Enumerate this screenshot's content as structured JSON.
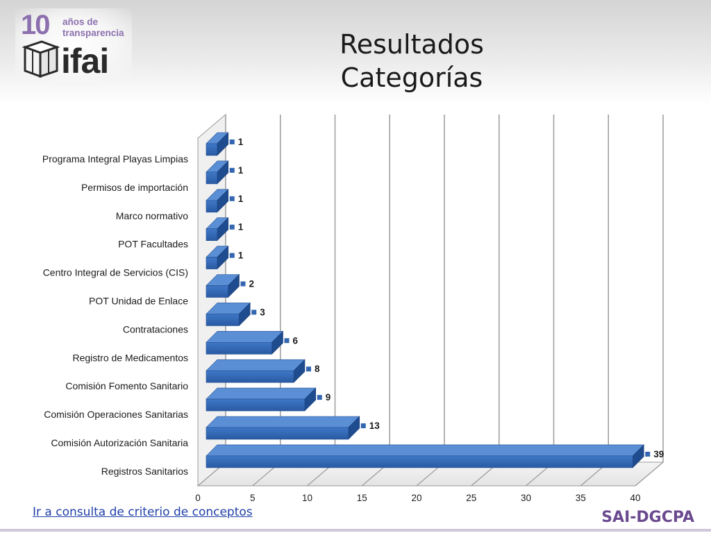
{
  "logo": {
    "number": "10",
    "tagline_line1": "años de",
    "tagline_line2": "transparencia",
    "wordmark": "ifai",
    "accent_color": "#8c6fae"
  },
  "slide": {
    "title_line1": "Resultados",
    "title_line2": "Categorías"
  },
  "footer": {
    "link_text": "Ir a consulta de criterio de conceptos",
    "brand": "SAI-DGCPA"
  },
  "chart_data": {
    "type": "bar",
    "orientation": "horizontal",
    "style": "3d",
    "bar_color": "#3366b0",
    "categories": [
      "Programa Integral Playas Limpias",
      "Permisos de importación",
      "Marco normativo",
      "POT Facultades",
      "Centro Integral de Servicios (CIS)",
      "POT Unidad de Enlace",
      "Contrataciones",
      "Registro de Medicamentos",
      "Comisión Fomento Sanitario",
      "Comisión Operaciones Sanitarias",
      "Comisión Autorización Sanitaria",
      "Registros Sanitarios"
    ],
    "values": [
      1,
      1,
      1,
      1,
      1,
      2,
      3,
      6,
      8,
      9,
      13,
      39
    ],
    "data_labels": [
      "1",
      "1",
      "1",
      "1",
      "1",
      "2",
      "3",
      "6",
      "8",
      "9",
      "13",
      "39"
    ],
    "xticks": [
      "0",
      "5",
      "10",
      "15",
      "20",
      "25",
      "30",
      "35",
      "40"
    ],
    "xlim": [
      0,
      40
    ],
    "grid": true,
    "legend": "none"
  }
}
